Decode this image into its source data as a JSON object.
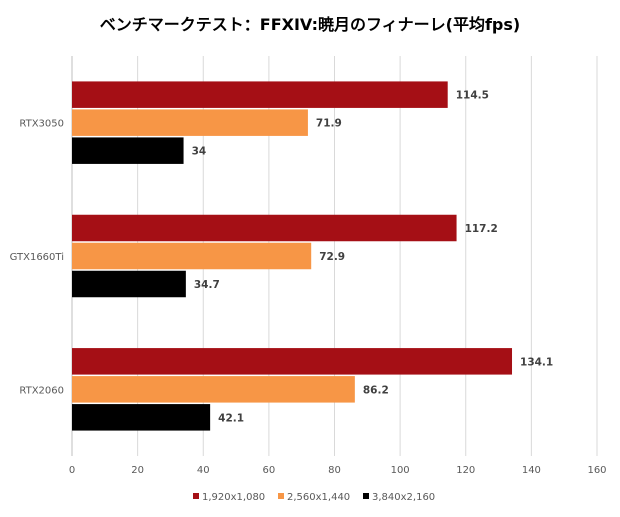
{
  "chart_data": {
    "type": "bar",
    "orientation": "horizontal",
    "title": "ベンチマークテスト：FFXIV:暁月のフィナーレ(平均fps)",
    "categories": [
      "RTX3050",
      "GTX1660Ti",
      "RTX2060"
    ],
    "series": [
      {
        "name": "1,920x1,080",
        "color": "#a50f15",
        "values": [
          114.5,
          117.2,
          134.1
        ]
      },
      {
        "name": "2,560x1,440",
        "color": "#f79646",
        "values": [
          71.9,
          72.9,
          86.2
        ]
      },
      {
        "name": "3,840x2,160",
        "color": "#000000",
        "values": [
          34,
          34.7,
          42.1
        ]
      }
    ],
    "xlim": [
      0,
      160
    ],
    "xticks": [
      0,
      20,
      40,
      60,
      80,
      100,
      120,
      140,
      160
    ],
    "grid": true,
    "legend": "bottom",
    "xlabel": "",
    "ylabel": ""
  }
}
